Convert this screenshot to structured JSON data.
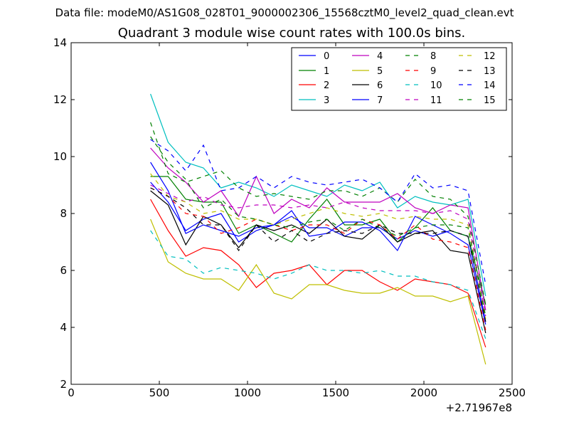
{
  "suptitle": "Data file: modeM0/AS1G08_028T01_9000002306_15568cztM0_level2_quad_clean.evt",
  "chart_data": {
    "type": "line",
    "title": "Quadrant 3 module wise count rates with 100.0s bins.",
    "xlabel": "",
    "ylabel": "",
    "x_offset_label": "+2.71967e8",
    "xlim": [
      0,
      2500
    ],
    "ylim": [
      2,
      14
    ],
    "xticks": [
      "0",
      "500",
      "1000",
      "1500",
      "2000",
      "2500"
    ],
    "yticks": [
      "2",
      "4",
      "6",
      "8",
      "10",
      "12",
      "14"
    ],
    "legend_position": "top-right",
    "x": [
      450,
      550,
      650,
      750,
      850,
      950,
      1050,
      1150,
      1250,
      1350,
      1450,
      1550,
      1650,
      1750,
      1850,
      1950,
      2050,
      2150,
      2250,
      2350
    ],
    "series": [
      {
        "name": "0",
        "color": "#0000ff",
        "dash": "solid",
        "values": [
          9.1,
          8.4,
          7.4,
          7.8,
          8.0,
          7.0,
          7.4,
          7.6,
          7.9,
          7.5,
          7.5,
          7.2,
          7.5,
          7.5,
          7.1,
          7.4,
          7.2,
          7.4,
          7.2,
          4.2
        ]
      },
      {
        "name": "1",
        "color": "#008000",
        "dash": "solid",
        "values": [
          9.3,
          9.3,
          8.5,
          8.4,
          8.4,
          7.3,
          7.6,
          7.3,
          7.0,
          7.8,
          8.5,
          7.6,
          7.6,
          7.8,
          7.0,
          7.5,
          8.2,
          7.4,
          7.2,
          4.8
        ]
      },
      {
        "name": "2",
        "color": "#ff0000",
        "dash": "solid",
        "values": [
          8.5,
          7.4,
          6.5,
          6.8,
          6.7,
          6.2,
          5.4,
          5.9,
          6.0,
          6.2,
          5.5,
          6.0,
          6.0,
          5.6,
          5.3,
          5.7,
          5.6,
          5.5,
          5.2,
          3.3
        ]
      },
      {
        "name": "3",
        "color": "#00bfbf",
        "dash": "solid",
        "values": [
          12.2,
          10.5,
          9.8,
          9.6,
          8.9,
          9.1,
          8.9,
          8.6,
          9.0,
          8.8,
          8.6,
          9.0,
          8.8,
          9.1,
          8.2,
          8.6,
          8.4,
          8.3,
          8.5,
          5.1
        ]
      },
      {
        "name": "4",
        "color": "#bf00bf",
        "dash": "solid",
        "values": [
          10.3,
          9.6,
          9.1,
          8.4,
          8.8,
          7.9,
          9.3,
          8.0,
          8.5,
          8.2,
          8.9,
          8.4,
          8.4,
          8.4,
          8.7,
          8.2,
          8.0,
          8.3,
          8.2,
          4.6
        ]
      },
      {
        "name": "5",
        "color": "#bfbf00",
        "dash": "solid",
        "values": [
          7.8,
          6.3,
          5.9,
          5.7,
          5.7,
          5.3,
          6.2,
          5.2,
          5.0,
          5.5,
          5.5,
          5.3,
          5.2,
          5.2,
          5.4,
          5.1,
          5.1,
          4.9,
          5.1,
          2.7
        ]
      },
      {
        "name": "6",
        "color": "#000000",
        "dash": "solid",
        "values": [
          8.8,
          8.3,
          6.9,
          7.9,
          7.6,
          6.8,
          7.6,
          7.4,
          7.6,
          7.3,
          7.8,
          7.2,
          7.1,
          7.6,
          7.0,
          7.3,
          7.4,
          6.7,
          6.6,
          3.8
        ]
      },
      {
        "name": "7",
        "color": "#0000ff",
        "dash": "solid",
        "values": [
          9.8,
          8.8,
          7.3,
          7.6,
          7.4,
          7.2,
          7.5,
          7.6,
          8.1,
          7.2,
          7.3,
          7.7,
          7.7,
          7.4,
          6.7,
          7.9,
          7.6,
          7.3,
          6.9,
          4.1
        ]
      },
      {
        "name": "8",
        "color": "#008000",
        "dash": "dashed",
        "values": [
          11.2,
          9.4,
          9.1,
          9.3,
          9.5,
          8.9,
          8.6,
          8.7,
          8.6,
          8.5,
          8.8,
          8.8,
          8.6,
          8.9,
          8.4,
          9.2,
          8.6,
          8.5,
          7.9,
          4.8
        ]
      },
      {
        "name": "9",
        "color": "#ff0000",
        "dash": "dashed",
        "values": [
          8.9,
          8.6,
          8.0,
          7.9,
          7.3,
          7.5,
          7.8,
          7.6,
          7.4,
          7.6,
          7.6,
          7.3,
          7.8,
          7.6,
          7.1,
          7.6,
          7.1,
          7.0,
          6.8,
          3.9
        ]
      },
      {
        "name": "10",
        "color": "#00bfbf",
        "dash": "dashed",
        "values": [
          7.4,
          6.5,
          6.4,
          5.9,
          6.1,
          6.0,
          5.9,
          5.7,
          5.9,
          6.2,
          6.0,
          6.0,
          5.9,
          6.0,
          5.8,
          5.8,
          5.6,
          5.5,
          5.3,
          3.6
        ]
      },
      {
        "name": "11",
        "color": "#bf00bf",
        "dash": "dashed",
        "values": [
          9.0,
          8.7,
          8.4,
          8.6,
          8.3,
          8.2,
          8.3,
          8.3,
          8.2,
          8.3,
          8.2,
          8.4,
          8.2,
          8.1,
          8.1,
          8.1,
          8.0,
          8.1,
          7.8,
          4.4
        ]
      },
      {
        "name": "12",
        "color": "#bfbf00",
        "dash": "dashed",
        "values": [
          9.4,
          8.6,
          8.4,
          8.0,
          8.1,
          7.8,
          7.8,
          7.6,
          7.8,
          8.0,
          8.2,
          8.0,
          7.9,
          8.0,
          7.8,
          7.9,
          7.8,
          7.8,
          7.6,
          4.3
        ]
      },
      {
        "name": "13",
        "color": "#000000",
        "dash": "dashed",
        "values": [
          8.9,
          8.6,
          8.2,
          7.6,
          7.6,
          6.7,
          7.6,
          7.0,
          7.4,
          7.0,
          7.3,
          7.4,
          7.3,
          7.6,
          7.3,
          7.3,
          7.3,
          7.4,
          7.2,
          4.2
        ]
      },
      {
        "name": "14",
        "color": "#0000ff",
        "dash": "dashed",
        "values": [
          10.6,
          10.2,
          9.5,
          10.4,
          8.8,
          8.9,
          9.3,
          8.9,
          9.3,
          9.1,
          9.0,
          9.1,
          9.2,
          8.9,
          8.4,
          9.4,
          8.9,
          9.0,
          8.8,
          5.5
        ]
      },
      {
        "name": "15",
        "color": "#008000",
        "dash": "dashed",
        "values": [
          10.7,
          9.8,
          9.2,
          8.2,
          8.5,
          7.9,
          7.8,
          7.6,
          7.5,
          7.7,
          7.8,
          7.4,
          7.8,
          7.5,
          7.2,
          7.5,
          7.6,
          7.6,
          7.5,
          4.4
        ]
      }
    ]
  }
}
